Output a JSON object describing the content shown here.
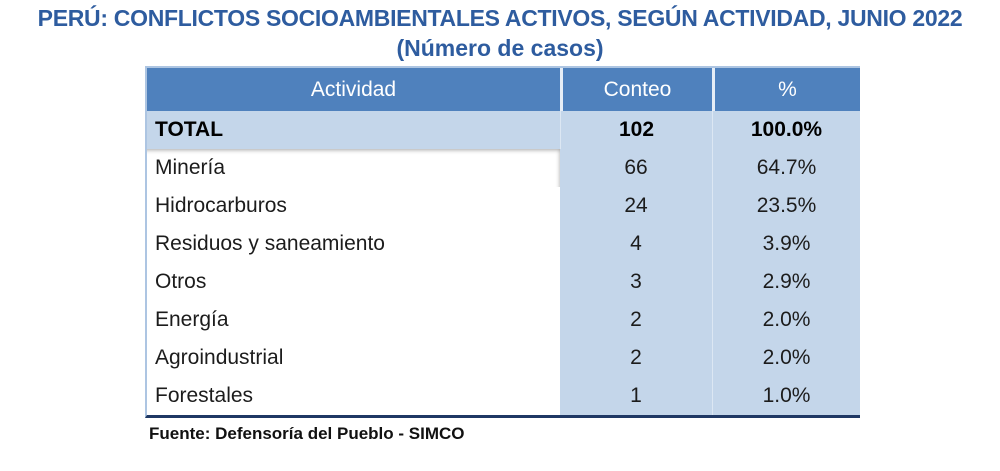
{
  "title": "PERÚ: CONFLICTOS SOCIOAMBIENTALES ACTIVOS, SEGÚN ACTIVIDAD, JUNIO 2022",
  "subtitle": "(Número de casos)",
  "source": "Fuente: Defensoría del Pueblo - SIMCO",
  "colors": {
    "header_bg": "#4F81BD",
    "header_text": "#FFFFFF",
    "light_blue": "#C4D6EA",
    "title_color": "#2E5C9F",
    "border_dark": "#1F3864",
    "border_light": "#ADC5E2",
    "text_dark": "#1C1C1C"
  },
  "chart_data": {
    "type": "table",
    "title": "PERÚ: CONFLICTOS SOCIOAMBIENTALES ACTIVOS, SEGÚN ACTIVIDAD, JUNIO 2022",
    "subtitle": "(Número de casos)",
    "columns": [
      "Actividad",
      "Conteo",
      "%"
    ],
    "total_row": [
      "TOTAL",
      "102",
      "100.0%"
    ],
    "rows": [
      [
        "Minería",
        "66",
        "64.7%"
      ],
      [
        "Hidrocarburos",
        "24",
        "23.5%"
      ],
      [
        "Residuos y saneamiento",
        "4",
        "3.9%"
      ],
      [
        "Otros",
        "3",
        "2.9%"
      ],
      [
        "Energía",
        "2",
        "2.0%"
      ],
      [
        "Agroindustrial",
        "2",
        "2.0%"
      ],
      [
        "Forestales",
        "1",
        "1.0%"
      ]
    ],
    "source": "Fuente: Defensoría del Pueblo - SIMCO"
  }
}
